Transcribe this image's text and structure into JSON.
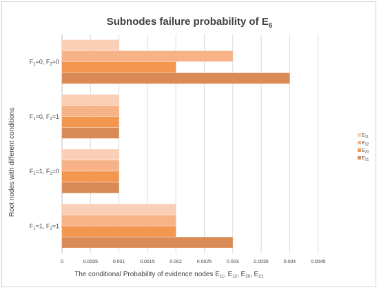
{
  "chart_data": {
    "type": "bar",
    "orientation": "horizontal",
    "title": {
      "main": "Subnodes failure probability of E",
      "sub": "6"
    },
    "xlabel": {
      "text": "The conditional Probability of evidence nodes E",
      "subs": [
        "11",
        "12",
        "20",
        "21"
      ]
    },
    "ylabel": "Root nodes with different conditions",
    "categories": [
      {
        "id": "F1=0, F2=0",
        "parts": [
          [
            "F",
            ""
          ],
          [
            "1",
            "sub"
          ],
          [
            "=0, F",
            ""
          ],
          [
            "2",
            "sub"
          ],
          [
            "=0",
            ""
          ]
        ]
      },
      {
        "id": "F1=0, F2=1",
        "parts": [
          [
            "F",
            ""
          ],
          [
            "1",
            "sub"
          ],
          [
            "=0, F",
            ""
          ],
          [
            "2",
            "sub"
          ],
          [
            "=1",
            ""
          ]
        ]
      },
      {
        "id": "F1=1, F2=0",
        "parts": [
          [
            "F",
            ""
          ],
          [
            "1",
            "sub"
          ],
          [
            "=1, F",
            ""
          ],
          [
            "2",
            "sub"
          ],
          [
            "=0",
            ""
          ]
        ]
      },
      {
        "id": "F1=1, F2=1",
        "parts": [
          [
            "F",
            ""
          ],
          [
            "1",
            "sub"
          ],
          [
            "=1, F",
            ""
          ],
          [
            "2",
            "sub"
          ],
          [
            "=1",
            ""
          ]
        ]
      }
    ],
    "series": [
      {
        "name": "E11",
        "label_main": "E",
        "label_sub": "11",
        "color": "#fbcfb6",
        "values": [
          0.001,
          0.001,
          0.001,
          0.002
        ]
      },
      {
        "name": "E12",
        "label_main": "E",
        "label_sub": "12",
        "color": "#f8b288",
        "values": [
          0.003,
          0.001,
          0.001,
          0.002
        ]
      },
      {
        "name": "E20",
        "label_main": "E",
        "label_sub": "20",
        "color": "#f3964f",
        "values": [
          0.002,
          0.001,
          0.001,
          0.002
        ]
      },
      {
        "name": "E21",
        "label_main": "E",
        "label_sub": "21",
        "color": "#d98a55",
        "values": [
          0.004,
          0.001,
          0.001,
          0.003
        ]
      }
    ],
    "xlim": [
      0,
      0.005
    ],
    "xticks": [
      "0",
      "0.0005",
      "0.001",
      "0.0015",
      "0.002",
      "0.0025",
      "0.003",
      "0.0035",
      "0.004",
      "0.0045"
    ],
    "grid": true,
    "legend_position": "right"
  }
}
